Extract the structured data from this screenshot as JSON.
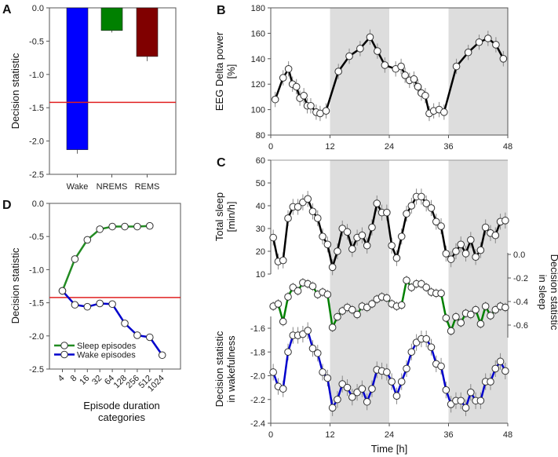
{
  "chart_data": [
    {
      "panel": "A",
      "type": "bar",
      "categories": [
        "Wake",
        "NREMS",
        "REMS"
      ],
      "values": [
        -2.13,
        -0.34,
        -0.73
      ],
      "sem": [
        0.06,
        0.03,
        0.07
      ],
      "colors": [
        "#0000ff",
        "#008000",
        "#800000"
      ],
      "ylabel": "Decision statistic",
      "ylim": [
        -2.5,
        0
      ],
      "yticks": [
        0,
        -0.5,
        -1,
        -1.5,
        -2,
        -2.5
      ],
      "ytick_labels": [
        "0.0",
        "-0.5",
        "-1.0",
        "-1.5",
        "-2.0",
        "-2.5"
      ],
      "threshold": -1.42,
      "threshold_color": "#e02020"
    },
    {
      "panel": "B",
      "type": "line",
      "x": [
        0.9,
        2.5,
        3.6,
        4.4,
        5.2,
        5.9,
        6.7,
        7.4,
        8.1,
        9.2,
        10,
        11.2,
        13.7,
        15.9,
        18.1,
        20.1,
        21.6,
        23.1,
        25.3,
        26.4,
        27.2,
        28.1,
        29,
        29.8,
        30.5,
        31.3,
        32.1,
        33,
        34.1,
        35.1,
        37.6,
        40,
        42.2,
        44,
        45.6,
        47.1
      ],
      "y": [
        108,
        125,
        132,
        120,
        118,
        109,
        111,
        103,
        103,
        98,
        97,
        99,
        130,
        142,
        148,
        157,
        146,
        135,
        132,
        134,
        127,
        123,
        124,
        118,
        113,
        111,
        97,
        99,
        100,
        98,
        134,
        145,
        153,
        156,
        151,
        140
      ],
      "sem": 6,
      "line_color": "#000000",
      "ylabel_lines": [
        "EEG Delta power",
        "[%]"
      ],
      "ylim": [
        80,
        180
      ],
      "yticks": [
        80,
        100,
        120,
        140,
        160,
        180
      ],
      "ytick_labels": [
        "80",
        "100",
        "120",
        "140",
        "160",
        "180"
      ],
      "xlim": [
        0,
        48
      ],
      "xticks": [
        0,
        12,
        24,
        36,
        48
      ],
      "xtick_labels": [
        "0",
        "12",
        "24",
        "36",
        "48"
      ],
      "shaded": [
        [
          12,
          24
        ],
        [
          36,
          48
        ]
      ],
      "shade_color": "#dddddd"
    },
    {
      "panel": "C",
      "type": "line",
      "x": [
        0.5,
        1.5,
        2.5,
        3.5,
        4.5,
        5.5,
        6.5,
        7.5,
        8.5,
        9.5,
        10.5,
        11.5,
        12.5,
        13.5,
        14.5,
        15.5,
        16.5,
        17.5,
        18.5,
        19.5,
        20.5,
        21.5,
        22.5,
        23.5,
        24.5,
        25.5,
        26.5,
        27.5,
        28.5,
        29.5,
        30.5,
        31.5,
        32.5,
        33.5,
        34.5,
        35.5,
        36.5,
        37.5,
        38.5,
        39.5,
        40.5,
        41.5,
        42.5,
        43.5,
        44.5,
        45.5,
        46.5,
        47.5
      ],
      "xlabel": "Time [h]",
      "xlim": [
        0,
        48
      ],
      "xticks": [
        0,
        12,
        24,
        36,
        48
      ],
      "xtick_labels": [
        "0",
        "12",
        "24",
        "36",
        "48"
      ],
      "shaded": [
        [
          12,
          24
        ],
        [
          36,
          48
        ]
      ],
      "shade_color": "#dddddd",
      "series": [
        {
          "axis": "left-top",
          "color": "#000000",
          "ylabel_lines": [
            "Total sleep",
            "[min/h]"
          ],
          "ylim": [
            10,
            60
          ],
          "yticks": [
            10,
            20,
            30,
            40,
            50,
            60
          ],
          "ytick_labels": [
            "10",
            "20",
            "30",
            "40",
            "50",
            "60"
          ],
          "sem": 3.5,
          "values": [
            26,
            15.5,
            16,
            34.5,
            39.5,
            39.5,
            41.5,
            43,
            37.5,
            34.5,
            26.5,
            23,
            13,
            20,
            30,
            28.5,
            21,
            26,
            27,
            22.5,
            30.5,
            41,
            37,
            37,
            22.5,
            17,
            26.5,
            36.5,
            40,
            44,
            44,
            41,
            39,
            33,
            31,
            19,
            16.5,
            20,
            23,
            19,
            25,
            17.5,
            20.5,
            30.5,
            28,
            27,
            33,
            33.5
          ]
        },
        {
          "axis": "right",
          "color": "#008000",
          "ylabel_lines": [
            "Decision statistic",
            "in sleep"
          ],
          "ylim": [
            -0.6,
            0
          ],
          "yticks": [
            0,
            -0.2,
            -0.4,
            -0.6
          ],
          "ytick_labels": [
            "0.0",
            "-0.2",
            "-0.4",
            "-0.6"
          ],
          "sem": 0.04,
          "values": [
            -0.44,
            -0.42,
            -0.57,
            -0.36,
            -0.28,
            -0.31,
            -0.24,
            -0.25,
            -0.27,
            -0.34,
            -0.32,
            -0.34,
            -0.62,
            -0.53,
            -0.48,
            -0.45,
            -0.47,
            -0.51,
            -0.44,
            -0.45,
            -0.42,
            -0.38,
            -0.36,
            -0.37,
            -0.42,
            -0.44,
            -0.43,
            -0.22,
            -0.28,
            -0.25,
            -0.25,
            -0.28,
            -0.32,
            -0.33,
            -0.33,
            -0.54,
            -0.65,
            -0.53,
            -0.58,
            -0.5,
            -0.51,
            -0.47,
            -0.59,
            -0.44,
            -0.52,
            -0.47,
            -0.44,
            -0.45
          ]
        },
        {
          "axis": "left-bottom",
          "color": "#0000cc",
          "ylabel_lines": [
            "Decision statistic",
            "in wakefulness"
          ],
          "ylim": [
            -2.4,
            -1.6
          ],
          "yticks": [
            -1.6,
            -1.8,
            -2.0,
            -2.2,
            -2.4
          ],
          "ytick_labels": [
            "-1.6",
            "-1.8",
            "-2.0",
            "-2.2",
            "-2.4"
          ],
          "sem": 0.07,
          "values": [
            -1.97,
            -2.09,
            -2.11,
            -1.8,
            -1.66,
            -1.66,
            -1.65,
            -1.62,
            -1.77,
            -1.81,
            -1.97,
            -2.02,
            -2.27,
            -2.2,
            -2.07,
            -2.1,
            -2.18,
            -2.14,
            -2.11,
            -2.22,
            -2.11,
            -1.95,
            -1.96,
            -1.97,
            -2.05,
            -2.17,
            -2.05,
            -1.94,
            -1.8,
            -1.72,
            -1.69,
            -1.69,
            -1.76,
            -1.9,
            -1.92,
            -2.12,
            -2.24,
            -2.21,
            -2.21,
            -2.27,
            -2.14,
            -2.21,
            -2.21,
            -2.05,
            -2.05,
            -1.94,
            -1.88,
            -1.96
          ]
        }
      ]
    },
    {
      "panel": "D",
      "type": "line",
      "categories": [
        "4",
        "8",
        "16",
        "32",
        "64",
        "128",
        "256",
        "512",
        "1024"
      ],
      "series": [
        {
          "name": "Sleep episodes",
          "color": "#228b22",
          "values": [
            -1.32,
            -0.84,
            -0.55,
            -0.39,
            -0.35,
            -0.35,
            -0.35,
            -0.34,
            null
          ]
        },
        {
          "name": "Wake episodes",
          "color": "#0000cc",
          "values": [
            -1.32,
            -1.53,
            -1.56,
            -1.51,
            -1.52,
            -1.81,
            -1.99,
            -2.02,
            -2.29
          ]
        }
      ],
      "xlabel_lines": [
        "Episode duration",
        "categories"
      ],
      "ylabel": "Decision statistic",
      "ylim": [
        -2.5,
        0
      ],
      "yticks": [
        0,
        -0.5,
        -1,
        -1.5,
        -2,
        -2.5
      ],
      "ytick_labels": [
        "0.0",
        "-0.5",
        "-1.0",
        "-1.5",
        "-2.0",
        "-2.5"
      ],
      "threshold": -1.42,
      "threshold_color": "#e02020",
      "legend_position": "bottom-left"
    }
  ]
}
